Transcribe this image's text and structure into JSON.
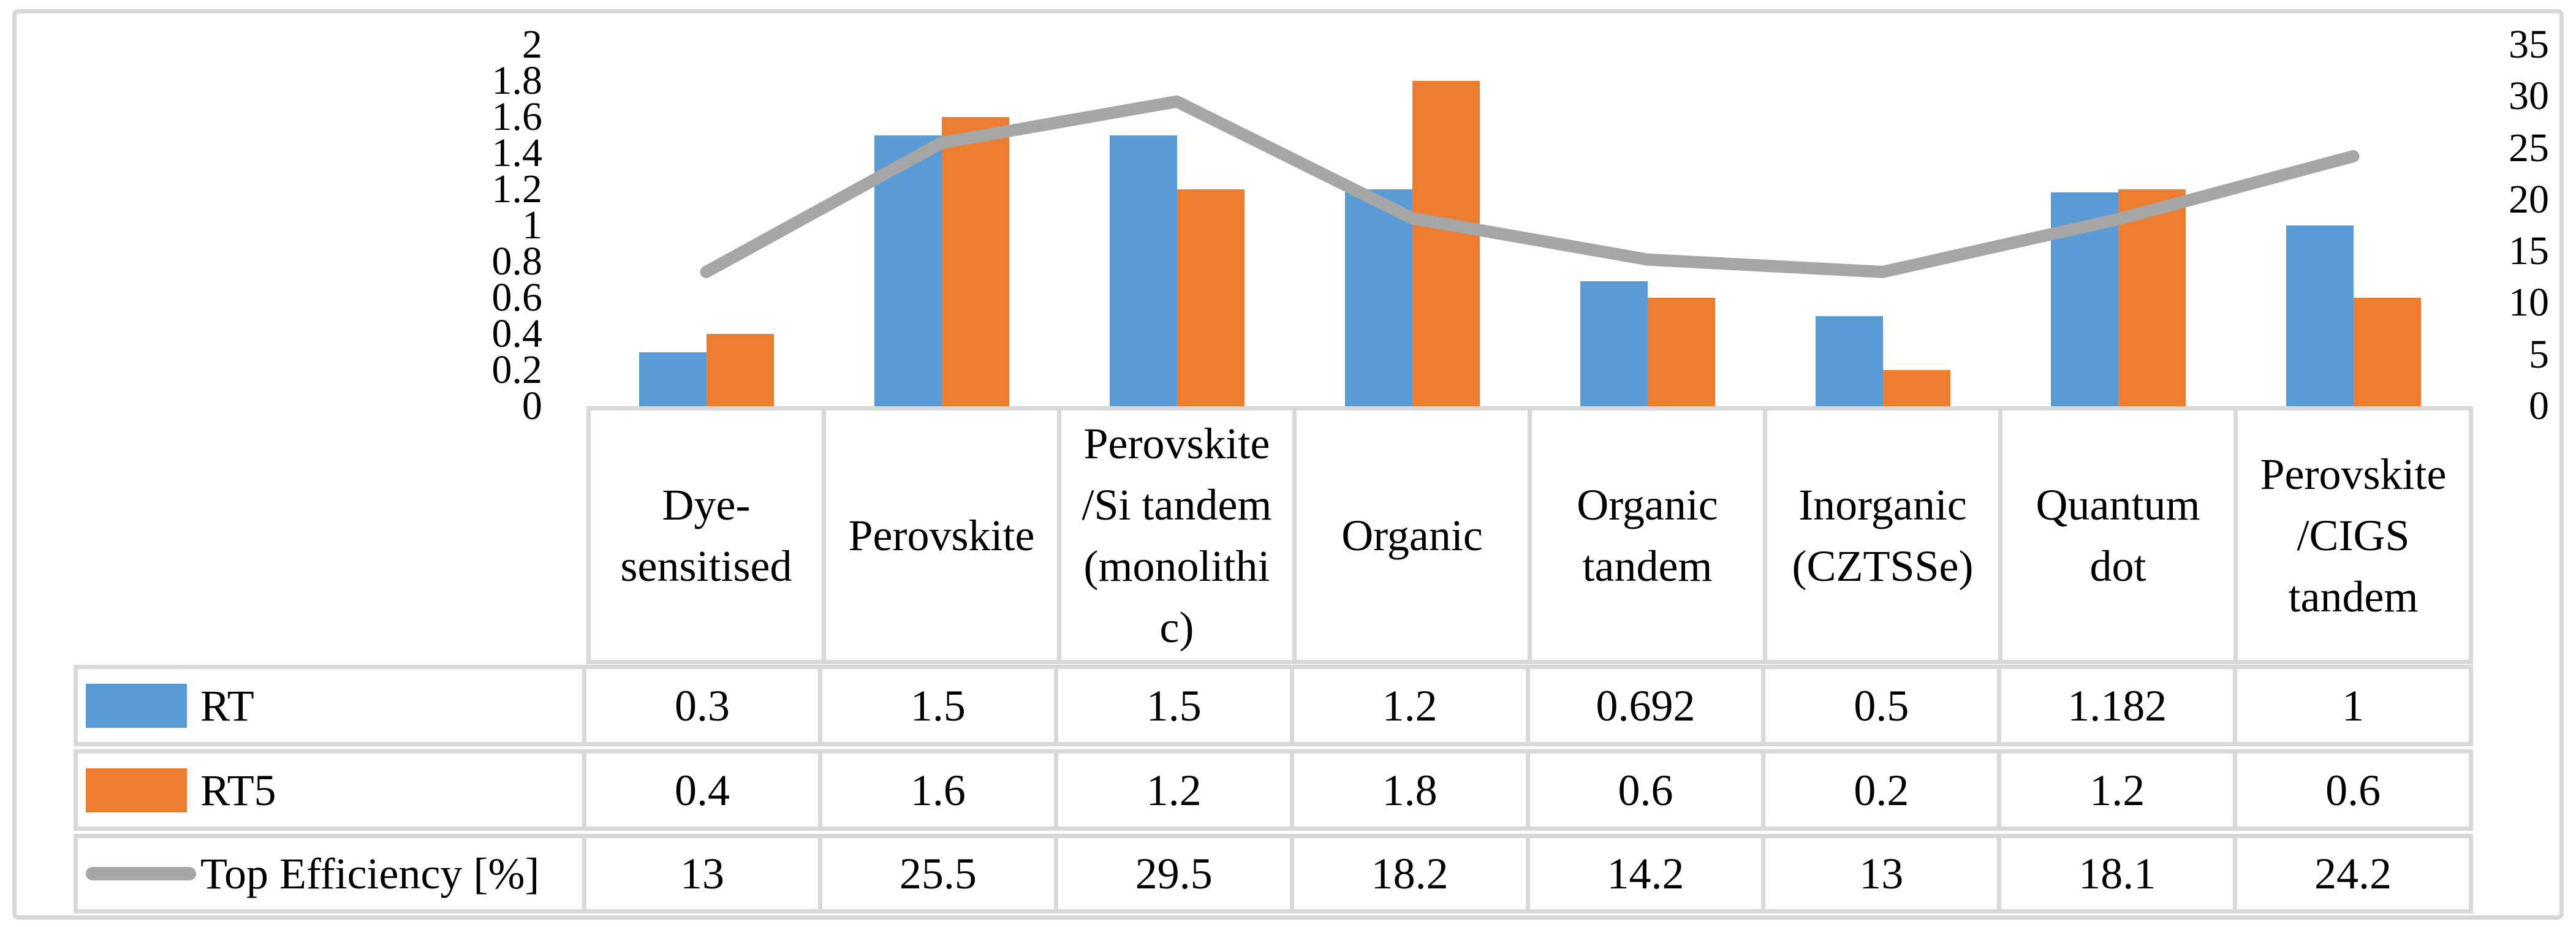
{
  "chart_data": {
    "type": "bar",
    "subtype": "grouped-bars-with-line-overlay-and-data-table",
    "title": "",
    "xlabel": "",
    "ylabel": "",
    "grid": false,
    "legend_position": "table-left",
    "categories": [
      "Dye-sensitised",
      "Perovskite",
      "Perovskite/Si tandem (monolithic)",
      "Organic",
      "Organic tandem",
      "Inorganic (CZTSSe)",
      "Quantum dot",
      "Perovskite/CIGS tandem"
    ],
    "categories_lines": [
      [
        "Dye-",
        "sensitised"
      ],
      [
        "Perovskite"
      ],
      [
        "Perovskite",
        "/Si tandem",
        "(monolithi",
        "c)"
      ],
      [
        "Organic"
      ],
      [
        "Organic",
        "tandem"
      ],
      [
        "Inorganic",
        "(CZTSSe)"
      ],
      [
        "Quantum",
        "dot"
      ],
      [
        "Perovskite",
        "/CIGS",
        "tandem"
      ]
    ],
    "series": [
      {
        "name": "RT",
        "type": "bar",
        "axis": "left",
        "color": "#5B9BD5",
        "values": [
          0.3,
          1.5,
          1.5,
          1.2,
          0.692,
          0.5,
          1.182,
          1
        ]
      },
      {
        "name": "RT5",
        "type": "bar",
        "axis": "left",
        "color": "#ED7D31",
        "values": [
          0.4,
          1.6,
          1.2,
          1.8,
          0.6,
          0.2,
          1.2,
          0.6
        ]
      },
      {
        "name": "Top Efficiency [%]",
        "type": "line",
        "axis": "right",
        "color": "#A6A6A6",
        "values": [
          13,
          25.5,
          29.5,
          18.2,
          14.2,
          13,
          18.1,
          24.2
        ]
      }
    ],
    "left_axis": {
      "min": 0,
      "max": 2,
      "ticks": [
        "2",
        "1.8",
        "1.6",
        "1.4",
        "1.2",
        "1",
        "0.8",
        "0.6",
        "0.4",
        "0.2",
        "0"
      ]
    },
    "right_axis": {
      "min": 0,
      "max": 35,
      "ticks": [
        "35",
        "30",
        "25",
        "20",
        "15",
        "10",
        "5",
        "0"
      ]
    }
  },
  "style": {
    "bar_blue": "#5B9BD5",
    "bar_orange": "#ED7D31",
    "line_gray": "#A6A6A6",
    "grid_gray": "#D9D9D9",
    "frame_gray": "#D8D8D8"
  }
}
